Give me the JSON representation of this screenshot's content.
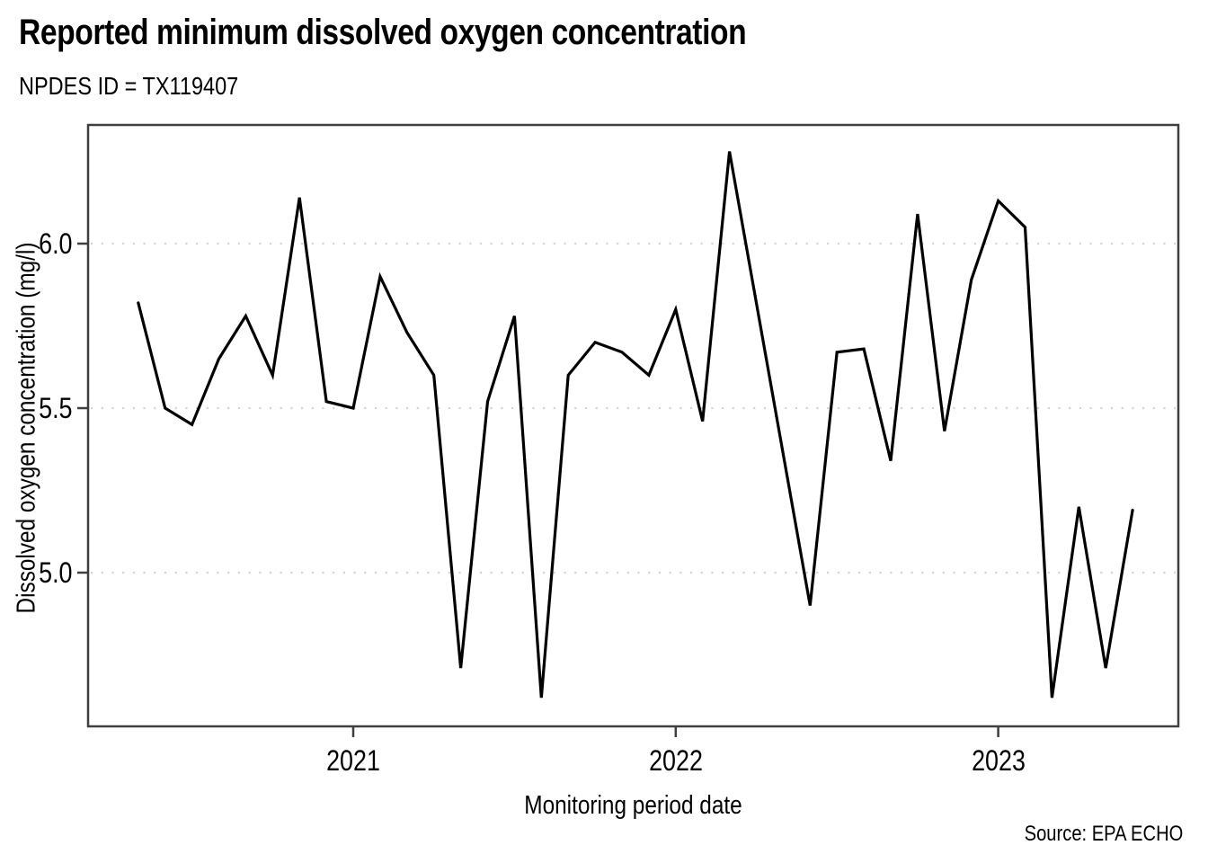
{
  "page": {
    "title": "Reported minimum dissolved oxygen concentration",
    "subtitle": "NPDES ID = TX119407",
    "source": "Source: EPA ECHO"
  },
  "chart_data": {
    "type": "line",
    "title": "Reported minimum dissolved oxygen concentration",
    "subtitle": "NPDES ID = TX119407",
    "xlabel": "Monitoring period date",
    "ylabel": "Dissolved oxygen concentration (mg/l)",
    "source": "Source: EPA ECHO",
    "legend": "none",
    "grid": "horizontal dotted gridlines at y ticks",
    "line_color": "#000000",
    "gridline_color": "#d4d4d4",
    "frame_color": "#3f3f3f",
    "ylim": [
      4.53,
      6.37
    ],
    "xlim": [
      "2020-03",
      "2023-08"
    ],
    "x_ticks": [
      {
        "label": "2021",
        "month": "2021-01"
      },
      {
        "label": "2022",
        "month": "2022-01"
      },
      {
        "label": "2023",
        "month": "2023-01"
      }
    ],
    "y_ticks": [
      {
        "label": "6.0",
        "value": 6.0
      },
      {
        "label": "5.5",
        "value": 5.5
      },
      {
        "label": "5.0",
        "value": 5.0
      }
    ],
    "x": [
      "2020-05",
      "2020-06",
      "2020-07",
      "2020-08",
      "2020-09",
      "2020-10",
      "2020-11",
      "2020-12",
      "2021-01",
      "2021-02",
      "2021-03",
      "2021-04",
      "2021-05",
      "2021-06",
      "2021-07",
      "2021-08",
      "2021-09",
      "2021-10",
      "2021-11",
      "2021-12",
      "2022-01",
      "2022-02",
      "2022-03",
      "2022-06",
      "2022-07",
      "2022-08",
      "2022-09",
      "2022-10",
      "2022-11",
      "2022-12",
      "2023-01",
      "2023-02",
      "2023-03",
      "2023-04",
      "2023-05",
      "2023-06"
    ],
    "y": [
      5.82,
      5.5,
      5.45,
      5.65,
      5.78,
      5.6,
      6.14,
      5.52,
      5.5,
      5.9,
      5.73,
      5.6,
      4.71,
      5.52,
      5.78,
      4.62,
      5.6,
      5.7,
      5.67,
      5.6,
      5.8,
      5.46,
      6.28,
      4.9,
      5.67,
      5.68,
      5.34,
      6.09,
      5.43,
      5.89,
      6.13,
      6.05,
      4.62,
      5.2,
      4.71,
      5.19
    ]
  }
}
